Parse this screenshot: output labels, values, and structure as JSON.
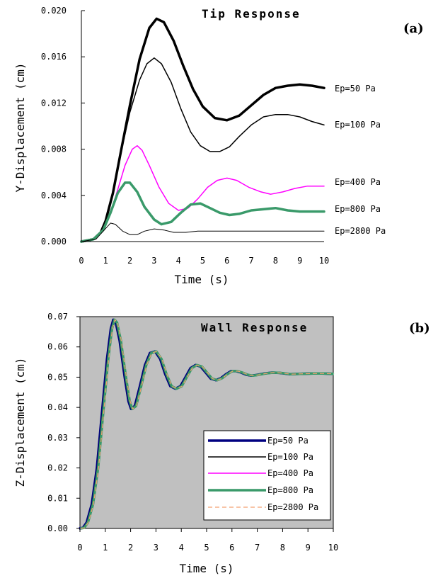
{
  "chart_data": [
    {
      "type": "line",
      "panel_label": "(a)",
      "title": "Tip Response",
      "xlabel": "Time (s)",
      "ylabel": "Y-Displacement (cm)",
      "xlim": [
        0,
        10
      ],
      "ylim": [
        0,
        0.02
      ],
      "x_ticks": [
        "0",
        "1",
        "2",
        "3",
        "4",
        "5",
        "6",
        "7",
        "8",
        "9",
        "10"
      ],
      "y_ticks": [
        "0.000",
        "0.004",
        "0.008",
        "0.012",
        "0.016",
        "0.020"
      ],
      "grid": false,
      "series": [
        {
          "name": "Ep=50 Pa",
          "color": "#000000",
          "width": 3.5,
          "points": [
            [
              0,
              0
            ],
            [
              0.5,
              0.0002
            ],
            [
              0.8,
              0.0008
            ],
            [
              1.0,
              0.0018
            ],
            [
              1.3,
              0.0042
            ],
            [
              1.6,
              0.0075
            ],
            [
              2.0,
              0.0118
            ],
            [
              2.4,
              0.0158
            ],
            [
              2.8,
              0.0185
            ],
            [
              3.1,
              0.0193
            ],
            [
              3.4,
              0.019
            ],
            [
              3.8,
              0.0174
            ],
            [
              4.2,
              0.0152
            ],
            [
              4.6,
              0.0132
            ],
            [
              5.0,
              0.0117
            ],
            [
              5.5,
              0.0107
            ],
            [
              6.0,
              0.0105
            ],
            [
              6.5,
              0.0109
            ],
            [
              7.0,
              0.0118
            ],
            [
              7.5,
              0.0127
            ],
            [
              8.0,
              0.0133
            ],
            [
              8.5,
              0.0135
            ],
            [
              9.0,
              0.0136
            ],
            [
              9.5,
              0.0135
            ],
            [
              10,
              0.0133
            ]
          ]
        },
        {
          "name": "Ep=100 Pa",
          "color": "#000000",
          "width": 1.5,
          "points": [
            [
              0,
              0
            ],
            [
              0.5,
              0.0002
            ],
            [
              0.8,
              0.0008
            ],
            [
              1.0,
              0.0018
            ],
            [
              1.3,
              0.0042
            ],
            [
              1.6,
              0.0074
            ],
            [
              2.0,
              0.0112
            ],
            [
              2.4,
              0.014
            ],
            [
              2.7,
              0.0154
            ],
            [
              3.0,
              0.0159
            ],
            [
              3.3,
              0.0154
            ],
            [
              3.7,
              0.0138
            ],
            [
              4.1,
              0.0115
            ],
            [
              4.5,
              0.0095
            ],
            [
              4.9,
              0.0083
            ],
            [
              5.3,
              0.0078
            ],
            [
              5.7,
              0.0078
            ],
            [
              6.1,
              0.0082
            ],
            [
              6.5,
              0.0091
            ],
            [
              7.0,
              0.0101
            ],
            [
              7.5,
              0.0108
            ],
            [
              8.0,
              0.011
            ],
            [
              8.5,
              0.011
            ],
            [
              9.0,
              0.0108
            ],
            [
              9.5,
              0.0104
            ],
            [
              10,
              0.0101
            ]
          ]
        },
        {
          "name": "Ep=400 Pa",
          "color": "#ff00ff",
          "width": 1.5,
          "points": [
            [
              0,
              0
            ],
            [
              0.5,
              0.0002
            ],
            [
              0.9,
              0.001
            ],
            [
              1.2,
              0.0025
            ],
            [
              1.5,
              0.0045
            ],
            [
              1.8,
              0.0066
            ],
            [
              2.1,
              0.008
            ],
            [
              2.3,
              0.0083
            ],
            [
              2.5,
              0.0079
            ],
            [
              2.8,
              0.0066
            ],
            [
              3.2,
              0.0047
            ],
            [
              3.6,
              0.0033
            ],
            [
              4.0,
              0.0027
            ],
            [
              4.4,
              0.0029
            ],
            [
              4.8,
              0.0037
            ],
            [
              5.2,
              0.0047
            ],
            [
              5.6,
              0.0053
            ],
            [
              6.0,
              0.0055
            ],
            [
              6.4,
              0.0053
            ],
            [
              6.9,
              0.0047
            ],
            [
              7.4,
              0.0043
            ],
            [
              7.8,
              0.0041
            ],
            [
              8.3,
              0.0043
            ],
            [
              8.8,
              0.0046
            ],
            [
              9.3,
              0.0048
            ],
            [
              10,
              0.0048
            ]
          ]
        },
        {
          "name": "Ep=800 Pa",
          "color": "#3a9a6a",
          "width": 3.5,
          "points": [
            [
              0,
              0
            ],
            [
              0.5,
              0.0002
            ],
            [
              0.9,
              0.001
            ],
            [
              1.2,
              0.0025
            ],
            [
              1.5,
              0.0042
            ],
            [
              1.8,
              0.0051
            ],
            [
              2.0,
              0.0051
            ],
            [
              2.3,
              0.0043
            ],
            [
              2.6,
              0.003
            ],
            [
              3.0,
              0.0019
            ],
            [
              3.3,
              0.0015
            ],
            [
              3.7,
              0.0017
            ],
            [
              4.1,
              0.0025
            ],
            [
              4.5,
              0.0032
            ],
            [
              4.9,
              0.0033
            ],
            [
              5.3,
              0.0029
            ],
            [
              5.7,
              0.0025
            ],
            [
              6.1,
              0.0023
            ],
            [
              6.5,
              0.0024
            ],
            [
              7.0,
              0.0027
            ],
            [
              7.5,
              0.0028
            ],
            [
              8.0,
              0.0029
            ],
            [
              8.5,
              0.0027
            ],
            [
              9.0,
              0.0026
            ],
            [
              9.5,
              0.0026
            ],
            [
              10,
              0.0026
            ]
          ]
        },
        {
          "name": "Ep=2800 Pa",
          "color": "#000000",
          "width": 1,
          "points": [
            [
              0,
              0
            ],
            [
              0.6,
              0.0002
            ],
            [
              0.9,
              0.0009
            ],
            [
              1.2,
              0.0016
            ],
            [
              1.4,
              0.0015
            ],
            [
              1.7,
              0.0009
            ],
            [
              2.0,
              0.0006
            ],
            [
              2.3,
              0.0006
            ],
            [
              2.6,
              0.0009
            ],
            [
              3.0,
              0.0011
            ],
            [
              3.4,
              0.001
            ],
            [
              3.8,
              0.0008
            ],
            [
              4.3,
              0.0008
            ],
            [
              4.8,
              0.0009
            ],
            [
              5.5,
              0.0009
            ],
            [
              6.5,
              0.0009
            ],
            [
              8.0,
              0.0009
            ],
            [
              10,
              0.0009
            ]
          ]
        }
      ]
    },
    {
      "type": "line",
      "panel_label": "(b)",
      "title": "Wall Response",
      "xlabel": "Time (s)",
      "ylabel": "Z-Displacement (cm)",
      "xlim": [
        0,
        10
      ],
      "ylim": [
        0,
        0.07
      ],
      "x_ticks": [
        "0",
        "1",
        "2",
        "3",
        "4",
        "5",
        "6",
        "7",
        "8",
        "9",
        "10"
      ],
      "y_ticks": [
        "0.00",
        "0.01",
        "0.02",
        "0.03",
        "0.04",
        "0.05",
        "0.06",
        "0.07"
      ],
      "grid": false,
      "plot_background": "#c0c0c0",
      "legend_position": "bottom-right",
      "series_points": [
        [
          0,
          0
        ],
        [
          0.15,
          0.0002
        ],
        [
          0.3,
          0.002
        ],
        [
          0.5,
          0.008
        ],
        [
          0.7,
          0.02
        ],
        [
          0.9,
          0.038
        ],
        [
          1.1,
          0.056
        ],
        [
          1.25,
          0.066
        ],
        [
          1.35,
          0.069
        ],
        [
          1.45,
          0.068
        ],
        [
          1.6,
          0.062
        ],
        [
          1.8,
          0.05
        ],
        [
          1.95,
          0.042
        ],
        [
          2.05,
          0.0395
        ],
        [
          2.2,
          0.0405
        ],
        [
          2.4,
          0.047
        ],
        [
          2.6,
          0.054
        ],
        [
          2.8,
          0.058
        ],
        [
          3.0,
          0.0585
        ],
        [
          3.2,
          0.056
        ],
        [
          3.4,
          0.051
        ],
        [
          3.6,
          0.047
        ],
        [
          3.8,
          0.0462
        ],
        [
          4.0,
          0.047
        ],
        [
          4.2,
          0.05
        ],
        [
          4.4,
          0.053
        ],
        [
          4.6,
          0.054
        ],
        [
          4.8,
          0.0535
        ],
        [
          5.0,
          0.0515
        ],
        [
          5.2,
          0.0495
        ],
        [
          5.4,
          0.049
        ],
        [
          5.6,
          0.0497
        ],
        [
          5.8,
          0.051
        ],
        [
          6.0,
          0.052
        ],
        [
          6.2,
          0.052
        ],
        [
          6.4,
          0.0515
        ],
        [
          6.6,
          0.0508
        ],
        [
          6.8,
          0.0505
        ],
        [
          7.0,
          0.0507
        ],
        [
          7.3,
          0.0512
        ],
        [
          7.6,
          0.0515
        ],
        [
          7.9,
          0.0514
        ],
        [
          8.3,
          0.051
        ],
        [
          8.7,
          0.0511
        ],
        [
          9.2,
          0.0512
        ],
        [
          9.6,
          0.0512
        ],
        [
          10,
          0.0511
        ]
      ],
      "series": [
        {
          "name": "Ep=50 Pa",
          "color": "#000080",
          "width": 3.5,
          "dash": ""
        },
        {
          "name": "Ep=100 Pa",
          "color": "#000000",
          "width": 1.5,
          "dash": ""
        },
        {
          "name": "Ep=400 Pa",
          "color": "#ff00ff",
          "width": 1.5,
          "dash": ""
        },
        {
          "name": "Ep=800 Pa",
          "color": "#3a9a6a",
          "width": 3.5,
          "dash": ""
        },
        {
          "name": "Ep=2800 Pa",
          "color": "#f4a070",
          "width": 1.2,
          "dash": "6,4"
        }
      ]
    }
  ]
}
